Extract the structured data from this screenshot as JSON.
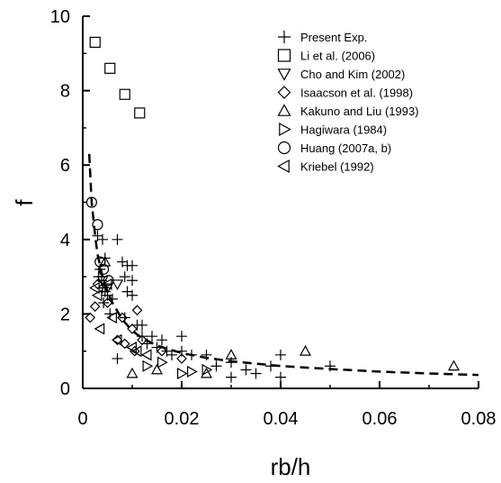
{
  "chart_data": {
    "type": "scatter",
    "xlabel": "rb/h",
    "ylabel": "f",
    "xlim": [
      0,
      0.08
    ],
    "ylim": [
      0,
      10
    ],
    "x_ticks": [
      "0",
      "0.02",
      "0.04",
      "0.06",
      "0.08"
    ],
    "y_ticks": [
      "0",
      "2",
      "4",
      "6",
      "8",
      "10"
    ],
    "grid": false,
    "legend_placement": "top-right",
    "series": [
      {
        "name": "Present Exp.",
        "marker": "plus",
        "points": [
          [
            0.003,
            4.1
          ],
          [
            0.004,
            4.0
          ],
          [
            0.0045,
            3.5
          ],
          [
            0.0035,
            3.2
          ],
          [
            0.0032,
            3.0
          ],
          [
            0.0038,
            2.9
          ],
          [
            0.004,
            2.7
          ],
          [
            0.0045,
            2.6
          ],
          [
            0.005,
            2.5
          ],
          [
            0.0042,
            2.3
          ],
          [
            0.0055,
            2.0
          ],
          [
            0.006,
            2.4
          ],
          [
            0.007,
            4.0
          ],
          [
            0.008,
            3.4
          ],
          [
            0.009,
            3.3
          ],
          [
            0.0085,
            3.0
          ],
          [
            0.009,
            2.6
          ],
          [
            0.01,
            3.3
          ],
          [
            0.01,
            2.9
          ],
          [
            0.01,
            2.5
          ],
          [
            0.011,
            1.7
          ],
          [
            0.012,
            1.7
          ],
          [
            0.012,
            1.4
          ],
          [
            0.013,
            1.2
          ],
          [
            0.014,
            1.4
          ],
          [
            0.015,
            1.1
          ],
          [
            0.016,
            1.3
          ],
          [
            0.017,
            1.0
          ],
          [
            0.018,
            0.9
          ],
          [
            0.02,
            1.4
          ],
          [
            0.02,
            1.0
          ],
          [
            0.022,
            0.9
          ],
          [
            0.025,
            0.9
          ],
          [
            0.027,
            0.6
          ],
          [
            0.03,
            0.7
          ],
          [
            0.03,
            0.3
          ],
          [
            0.033,
            0.5
          ],
          [
            0.035,
            0.4
          ],
          [
            0.038,
            0.6
          ],
          [
            0.04,
            0.9
          ],
          [
            0.04,
            0.3
          ],
          [
            0.05,
            0.6
          ],
          [
            0.007,
            0.8
          ],
          [
            0.0085,
            1.9
          ]
        ]
      },
      {
        "name": "Li et al. (2006)",
        "marker": "square",
        "points": [
          [
            0.0025,
            9.3
          ],
          [
            0.0055,
            8.6
          ],
          [
            0.0085,
            7.9
          ],
          [
            0.0115,
            7.4
          ]
        ]
      },
      {
        "name": "Cho and Kim (2002)",
        "marker": "triangle-down",
        "points": [
          [
            0.004,
            2.9
          ],
          [
            0.005,
            2.7
          ],
          [
            0.007,
            2.8
          ]
        ]
      },
      {
        "name": "Isaacson et al. (1998)",
        "marker": "diamond",
        "points": [
          [
            0.0015,
            1.9
          ],
          [
            0.0025,
            2.2
          ],
          [
            0.005,
            2.3
          ],
          [
            0.007,
            1.3
          ],
          [
            0.008,
            1.9
          ],
          [
            0.0085,
            1.2
          ],
          [
            0.01,
            1.6
          ],
          [
            0.011,
            2.1
          ],
          [
            0.0105,
            1.0
          ],
          [
            0.012,
            1.3
          ],
          [
            0.016,
            1.0
          ],
          [
            0.02,
            0.8
          ],
          [
            0.003,
            2.8
          ]
        ]
      },
      {
        "name": "Kakuno and Liu (1993)",
        "marker": "triangle-up",
        "points": [
          [
            0.0045,
            3.4
          ],
          [
            0.01,
            0.4
          ],
          [
            0.015,
            0.5
          ],
          [
            0.025,
            0.4
          ],
          [
            0.03,
            0.9
          ],
          [
            0.045,
            1.0
          ],
          [
            0.075,
            0.6
          ]
        ]
      },
      {
        "name": "Hagiwara (1984)",
        "marker": "triangle-right",
        "points": [
          [
            0.013,
            0.6
          ],
          [
            0.02,
            0.4
          ],
          [
            0.022,
            0.45
          ],
          [
            0.025,
            0.5
          ],
          [
            0.016,
            0.7
          ]
        ]
      },
      {
        "name": "Huang (2007a, b)",
        "marker": "circle",
        "points": [
          [
            0.0018,
            5.0
          ],
          [
            0.003,
            4.4
          ],
          [
            0.0035,
            3.4
          ],
          [
            0.0042,
            3.2
          ],
          [
            0.0052,
            2.9
          ]
        ]
      },
      {
        "name": "Kriebel (1992)",
        "marker": "triangle-left",
        "points": [
          [
            0.0025,
            2.7
          ],
          [
            0.003,
            2.5
          ],
          [
            0.0035,
            1.6
          ],
          [
            0.005,
            2.8
          ],
          [
            0.006,
            1.9
          ],
          [
            0.007,
            1.3
          ],
          [
            0.01,
            1.1
          ],
          [
            0.011,
            1.0
          ],
          [
            0.013,
            0.9
          ]
        ]
      }
    ],
    "fit_curve": {
      "style": "dashed",
      "points": [
        [
          0.0013,
          6.3
        ],
        [
          0.0018,
          5.0
        ],
        [
          0.0025,
          4.1
        ],
        [
          0.003,
          3.6
        ],
        [
          0.004,
          3.0
        ],
        [
          0.005,
          2.6
        ],
        [
          0.006,
          2.3
        ],
        [
          0.008,
          1.85
        ],
        [
          0.01,
          1.55
        ],
        [
          0.012,
          1.35
        ],
        [
          0.015,
          1.15
        ],
        [
          0.02,
          0.95
        ],
        [
          0.025,
          0.82
        ],
        [
          0.03,
          0.73
        ],
        [
          0.04,
          0.6
        ],
        [
          0.05,
          0.52
        ],
        [
          0.06,
          0.45
        ],
        [
          0.07,
          0.4
        ],
        [
          0.08,
          0.36
        ]
      ]
    }
  }
}
